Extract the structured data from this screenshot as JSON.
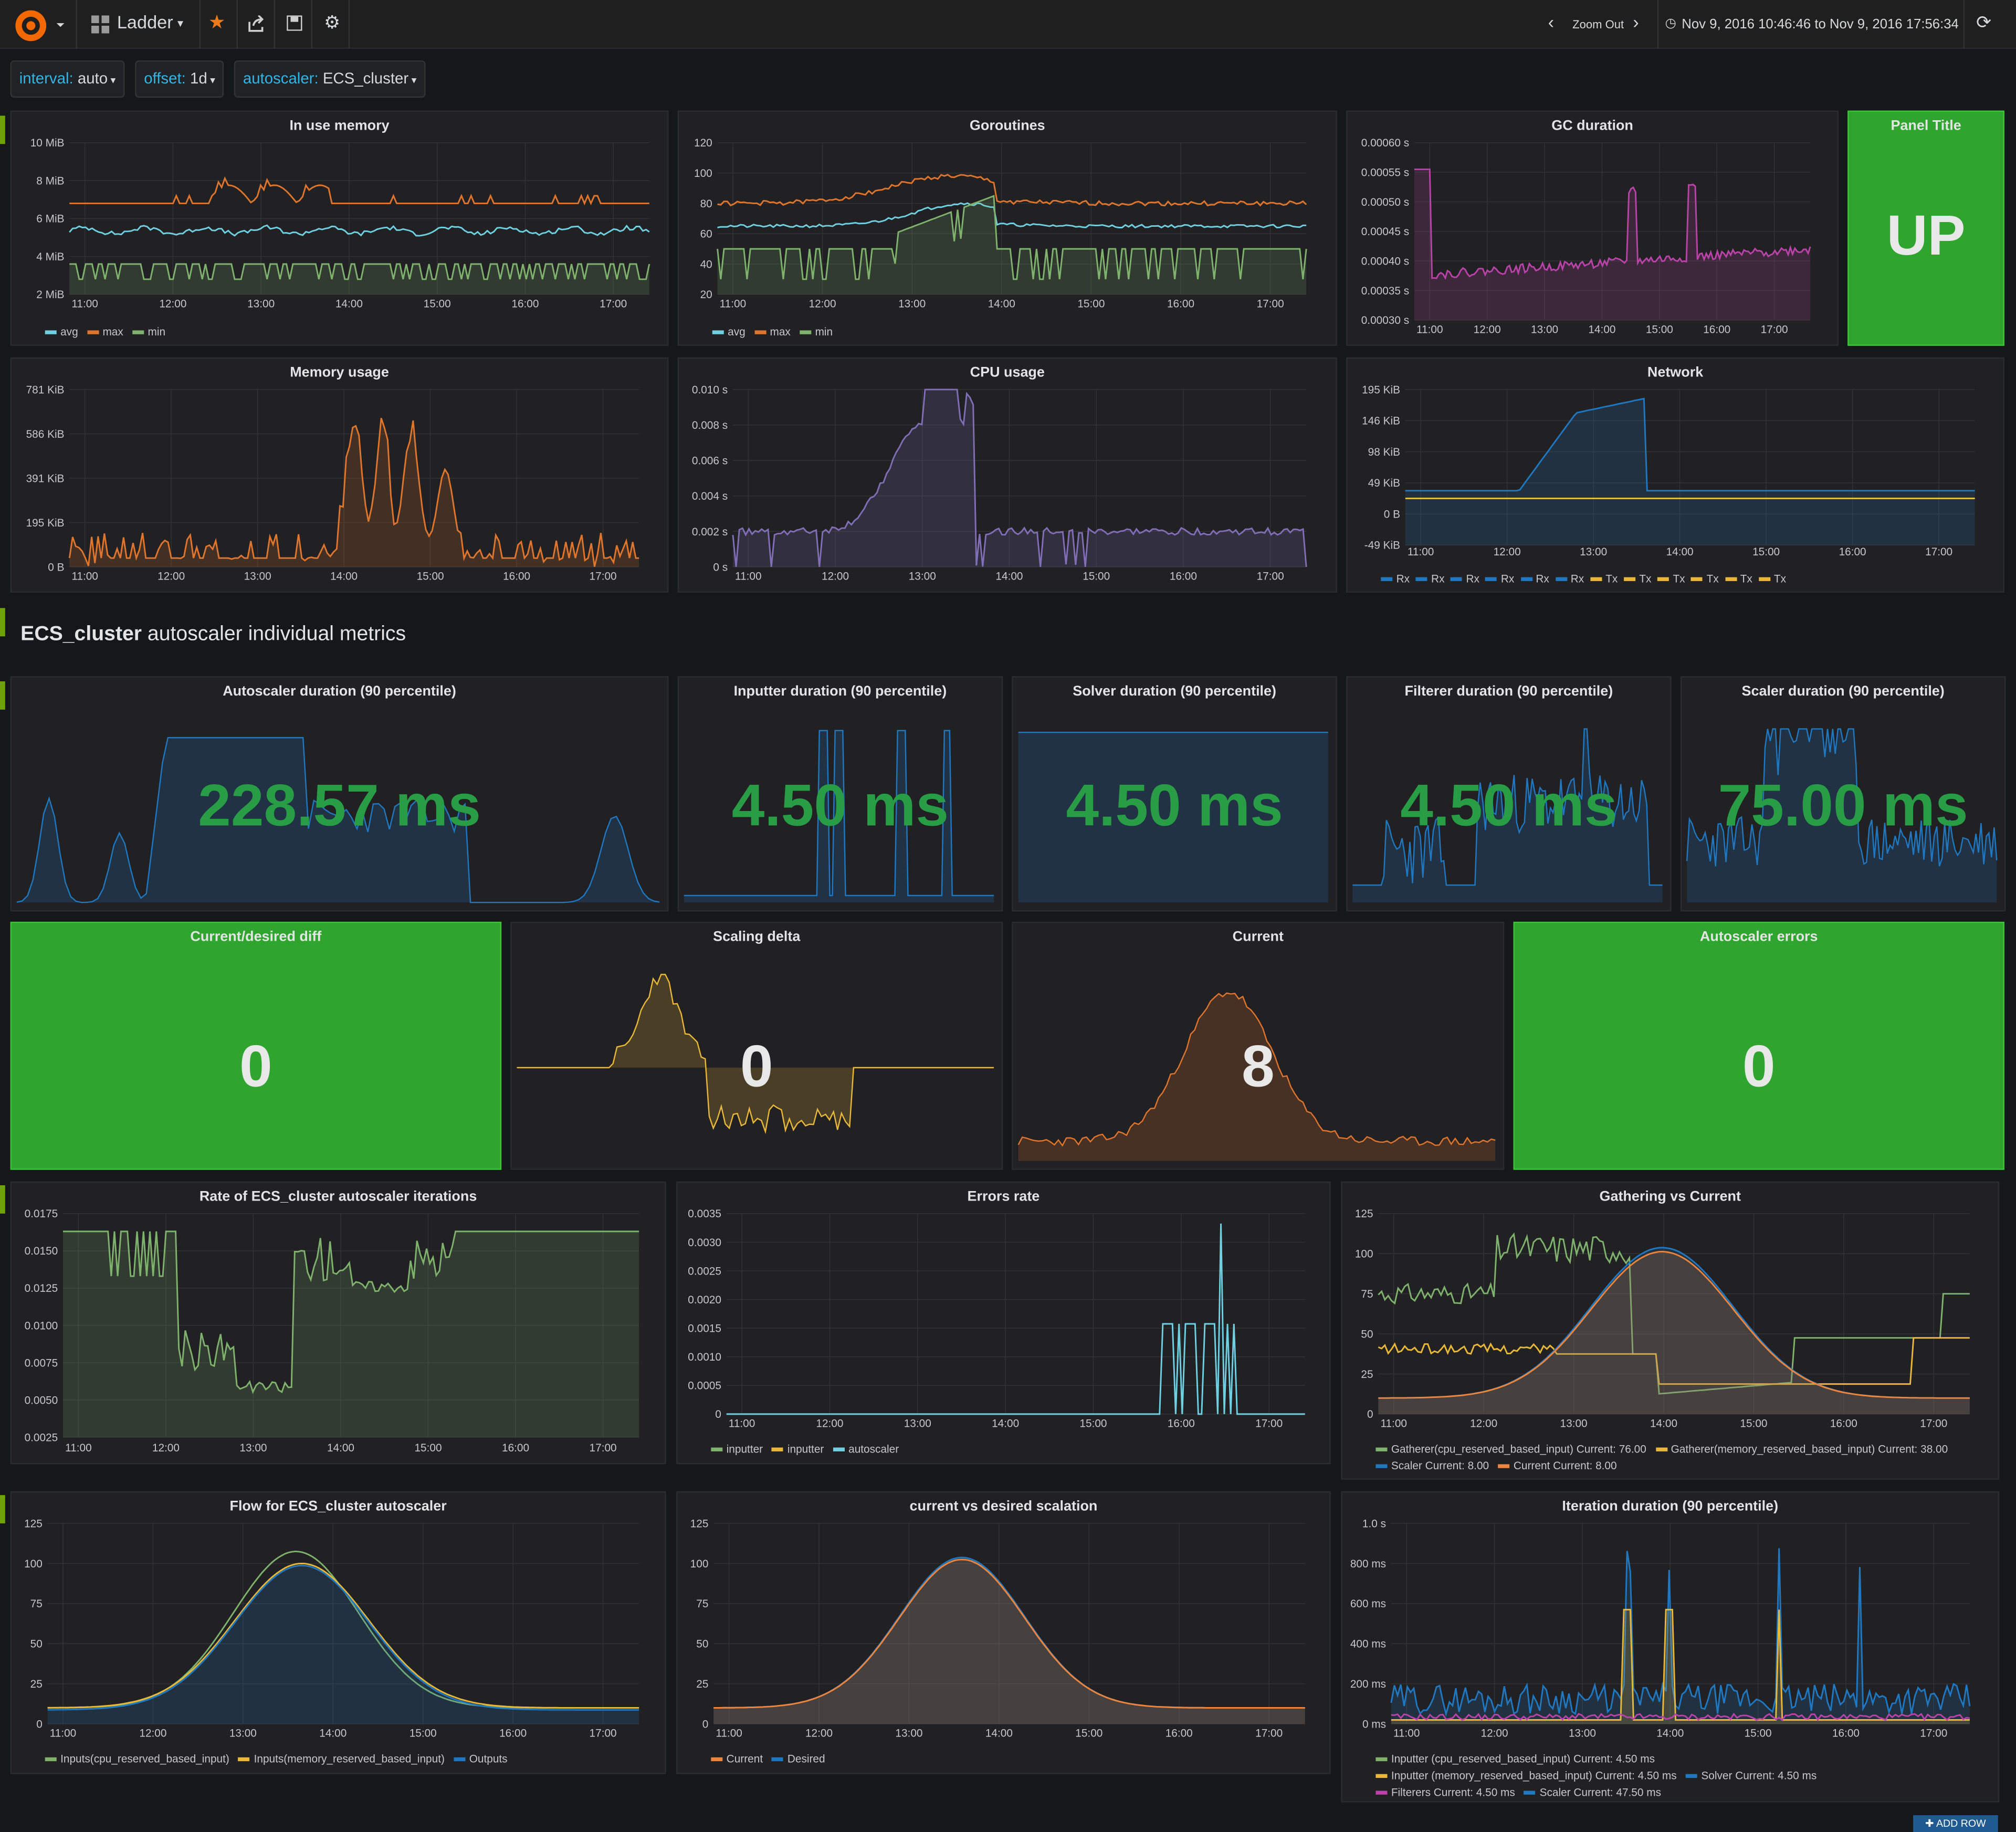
{
  "nav": {
    "dashboard_title": "Ladder",
    "zoom_out": "Zoom Out",
    "time_range": "Nov 9, 2016 10:46:46 to Nov 9, 2016 17:56:34"
  },
  "templating": [
    {
      "key": "interval:",
      "value": "auto"
    },
    {
      "key": "offset:",
      "value": "1d"
    },
    {
      "key": "autoscaler:",
      "value": "ECS_cluster"
    }
  ],
  "section": {
    "bold": "ECS_cluster",
    "rest": " autoscaler individual metrics"
  },
  "panels": {
    "in_use_memory": {
      "title": "In use memory",
      "legend": [
        "avg",
        "max",
        "min"
      ]
    },
    "goroutines": {
      "title": "Goroutines",
      "legend": [
        "avg",
        "max",
        "min"
      ]
    },
    "gc_duration": {
      "title": "GC duration"
    },
    "panel_title": {
      "title": "Panel Title",
      "value": "UP"
    },
    "memory_usage": {
      "title": "Memory usage"
    },
    "cpu_usage": {
      "title": "CPU usage"
    },
    "network": {
      "title": "Network",
      "legend": [
        "Rx",
        "Rx",
        "Rx",
        "Rx",
        "Rx",
        "Rx",
        "Tx",
        "Tx",
        "Tx",
        "Tx",
        "Tx",
        "Tx"
      ]
    },
    "autoscaler_duration": {
      "title": "Autoscaler duration (90 percentile)",
      "value": "228.57 ms"
    },
    "inputter_duration": {
      "title": "Inputter duration (90 percentile)",
      "value": "4.50 ms"
    },
    "solver_duration": {
      "title": "Solver duration (90 percentile)",
      "value": "4.50 ms"
    },
    "filterer_duration": {
      "title": "Filterer duration (90 percentile)",
      "value": "4.50 ms"
    },
    "scaler_duration": {
      "title": "Scaler duration (90 percentile)",
      "value": "75.00 ms"
    },
    "current_desired_diff": {
      "title": "Current/desired diff",
      "value": "0"
    },
    "scaling_delta": {
      "title": "Scaling delta",
      "value": "0"
    },
    "current": {
      "title": "Current",
      "value": "8"
    },
    "autoscaler_errors": {
      "title": "Autoscaler errors",
      "value": "0"
    },
    "rate_iterations": {
      "title": "Rate of ECS_cluster autoscaler iterations"
    },
    "errors_rate": {
      "title": "Errors rate",
      "legend": [
        "inputter",
        "inputter",
        "autoscaler"
      ]
    },
    "gathering_vs_current": {
      "title": "Gathering vs Current",
      "legend": [
        "Gatherer(cpu_reserved_based_input)  Current: 76.00",
        "Gatherer(memory_reserved_based_input)  Current: 38.00",
        "Scaler  Current: 8.00",
        "Current  Current: 8.00"
      ]
    },
    "flow": {
      "title": "Flow for ECS_cluster autoscaler",
      "legend": [
        "Inputs(cpu_reserved_based_input)",
        "Inputs(memory_reserved_based_input)",
        "Outputs"
      ]
    },
    "current_vs_desired": {
      "title": "current vs desired scalation",
      "legend": [
        "Current",
        "Desired"
      ]
    },
    "iteration_duration": {
      "title": "Iteration duration (90 percentile)",
      "legend": [
        "Inputter (cpu_reserved_based_input)  Current: 4.50 ms",
        "Inputter (memory_reserved_based_input)  Current: 4.50 ms",
        "Solver  Current: 4.50 ms",
        "Filterers  Current: 4.50 ms",
        "Scaler  Current: 47.50 ms"
      ]
    }
  },
  "add_row": "✚ ADD ROW",
  "colors": {
    "green": "#629e51",
    "yellow": "#e5ac0e",
    "orange": "#e0752d",
    "blue": "#1f78c1",
    "cyan": "#6ed0e0",
    "purple": "#806eb7",
    "magenta": "#ba43a9",
    "value_green": "#299c46"
  },
  "chart_data": [
    {
      "id": "in_use_memory",
      "type": "line",
      "x": [
        "11:00",
        "12:00",
        "13:00",
        "14:00",
        "15:00",
        "16:00",
        "17:00"
      ],
      "ylabels": [
        "10 MiB",
        "8 MiB",
        "6 MiB",
        "4 MiB",
        "2 MiB"
      ],
      "series": [
        {
          "name": "avg",
          "values": [
            5.0,
            5.1,
            5.3,
            5.2,
            5.1,
            5.1,
            5.0
          ]
        },
        {
          "name": "max",
          "values": [
            6.7,
            7.2,
            8.4,
            7.5,
            6.8,
            7.0,
            6.8
          ]
        },
        {
          "name": "min",
          "values": [
            3.8,
            3.2,
            3.6,
            3.5,
            3.0,
            3.4,
            3.2
          ]
        }
      ]
    },
    {
      "id": "goroutines",
      "type": "line",
      "x": [
        "11:00",
        "12:00",
        "13:00",
        "14:00",
        "15:00",
        "16:00",
        "17:00"
      ],
      "ylabels": [
        "120",
        "100",
        "80",
        "60",
        "40",
        "20"
      ],
      "series": [
        {
          "name": "avg",
          "values": [
            65,
            65,
            75,
            88,
            66,
            66,
            64
          ]
        },
        {
          "name": "max",
          "values": [
            79,
            80,
            97,
            108,
            80,
            80,
            78
          ]
        },
        {
          "name": "min",
          "values": [
            50,
            50,
            60,
            80,
            50,
            50,
            50
          ]
        }
      ]
    },
    {
      "id": "gc_duration",
      "type": "line",
      "x": [
        "11:00",
        "12:00",
        "13:00",
        "14:00",
        "15:00",
        "16:00",
        "17:00"
      ],
      "ylabels": [
        "0.00060 s",
        "0.00055 s",
        "0.00050 s",
        "0.00045 s",
        "0.00040 s",
        "0.00035 s",
        "0.00030 s"
      ]
    },
    {
      "id": "memory_usage",
      "type": "area",
      "x": [
        "11:00",
        "12:00",
        "13:00",
        "14:00",
        "15:00",
        "16:00",
        "17:00"
      ],
      "ylabels": [
        "781 KiB",
        "586 KiB",
        "391 KiB",
        "195 KiB",
        "0 B"
      ]
    },
    {
      "id": "cpu_usage",
      "type": "area",
      "x": [
        "11:00",
        "12:00",
        "13:00",
        "14:00",
        "15:00",
        "16:00",
        "17:00"
      ],
      "ylabels": [
        "0.010 s",
        "0.008 s",
        "0.006 s",
        "0.004 s",
        "0.002 s",
        "0 s"
      ]
    },
    {
      "id": "network",
      "type": "area",
      "x": [
        "11:00",
        "12:00",
        "13:00",
        "14:00",
        "15:00",
        "16:00",
        "17:00"
      ],
      "ylabels": [
        "195 KiB",
        "146 KiB",
        "98 KiB",
        "49 KiB",
        "0 B",
        "-49 KiB"
      ]
    },
    {
      "id": "rate_iterations",
      "type": "line",
      "x": [
        "11:00",
        "12:00",
        "13:00",
        "14:00",
        "15:00",
        "16:00",
        "17:00"
      ],
      "ylabels": [
        "0.0175",
        "0.0150",
        "0.0125",
        "0.0100",
        "0.0075",
        "0.0050",
        "0.0025"
      ]
    },
    {
      "id": "errors_rate",
      "type": "line",
      "x": [
        "11:00",
        "12:00",
        "13:00",
        "14:00",
        "15:00",
        "16:00",
        "17:00"
      ],
      "ylabels": [
        "0.0035",
        "0.0030",
        "0.0025",
        "0.0020",
        "0.0015",
        "0.0010",
        "0.0005",
        "0"
      ]
    },
    {
      "id": "gathering_vs_current",
      "type": "area",
      "x": [
        "11:00",
        "12:00",
        "13:00",
        "14:00",
        "15:00",
        "16:00",
        "17:00"
      ],
      "ylabels": [
        "125",
        "100",
        "75",
        "50",
        "25",
        "0"
      ]
    },
    {
      "id": "flow",
      "type": "area",
      "x": [
        "11:00",
        "12:00",
        "13:00",
        "14:00",
        "15:00",
        "16:00",
        "17:00"
      ],
      "ylabels": [
        "125",
        "100",
        "75",
        "50",
        "25",
        "0"
      ]
    },
    {
      "id": "current_vs_desired",
      "type": "area",
      "x": [
        "11:00",
        "12:00",
        "13:00",
        "14:00",
        "15:00",
        "16:00",
        "17:00"
      ],
      "ylabels": [
        "125",
        "100",
        "75",
        "50",
        "25",
        "0"
      ]
    },
    {
      "id": "iteration_duration",
      "type": "area",
      "x": [
        "11:00",
        "12:00",
        "13:00",
        "14:00",
        "15:00",
        "16:00",
        "17:00"
      ],
      "ylabels": [
        "1.0 s",
        "800 ms",
        "600 ms",
        "400 ms",
        "200 ms",
        "0 ms"
      ]
    }
  ]
}
